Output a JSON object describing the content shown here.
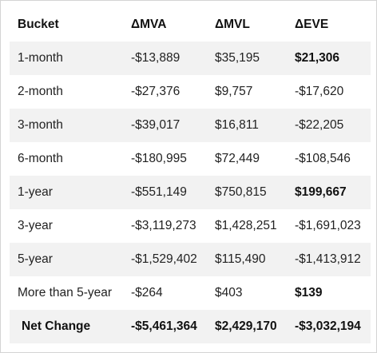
{
  "table": {
    "headers": [
      "Bucket",
      "ΔMVA",
      "ΔMVL",
      "ΔEVE"
    ],
    "rows": [
      {
        "bucket": "1-month",
        "mva": "-$13,889",
        "mvl": "$35,195",
        "eve": "$21,306",
        "eve_bold": true
      },
      {
        "bucket": "2-month",
        "mva": "-$27,376",
        "mvl": "$9,757",
        "eve": "-$17,620",
        "eve_bold": false
      },
      {
        "bucket": "3-month",
        "mva": "-$39,017",
        "mvl": "$16,811",
        "eve": "-$22,205",
        "eve_bold": false
      },
      {
        "bucket": "6-month",
        "mva": "-$180,995",
        "mvl": "$72,449",
        "eve": "-$108,546",
        "eve_bold": false
      },
      {
        "bucket": "1-year",
        "mva": "-$551,149",
        "mvl": "$750,815",
        "eve": "$199,667",
        "eve_bold": true
      },
      {
        "bucket": "3-year",
        "mva": "-$3,119,273",
        "mvl": "$1,428,251",
        "eve": "-$1,691,023",
        "eve_bold": false
      },
      {
        "bucket": "5-year",
        "mva": "-$1,529,402",
        "mvl": "$115,490",
        "eve": "-$1,413,912",
        "eve_bold": false
      },
      {
        "bucket": "More than 5-year",
        "mva": "-$264",
        "mvl": "$403",
        "eve": "$139",
        "eve_bold": true
      }
    ],
    "net": {
      "label": "Net Change",
      "mva": "-$5,461,364",
      "mvl": "$2,429,170",
      "eve": "-$3,032,194"
    }
  }
}
